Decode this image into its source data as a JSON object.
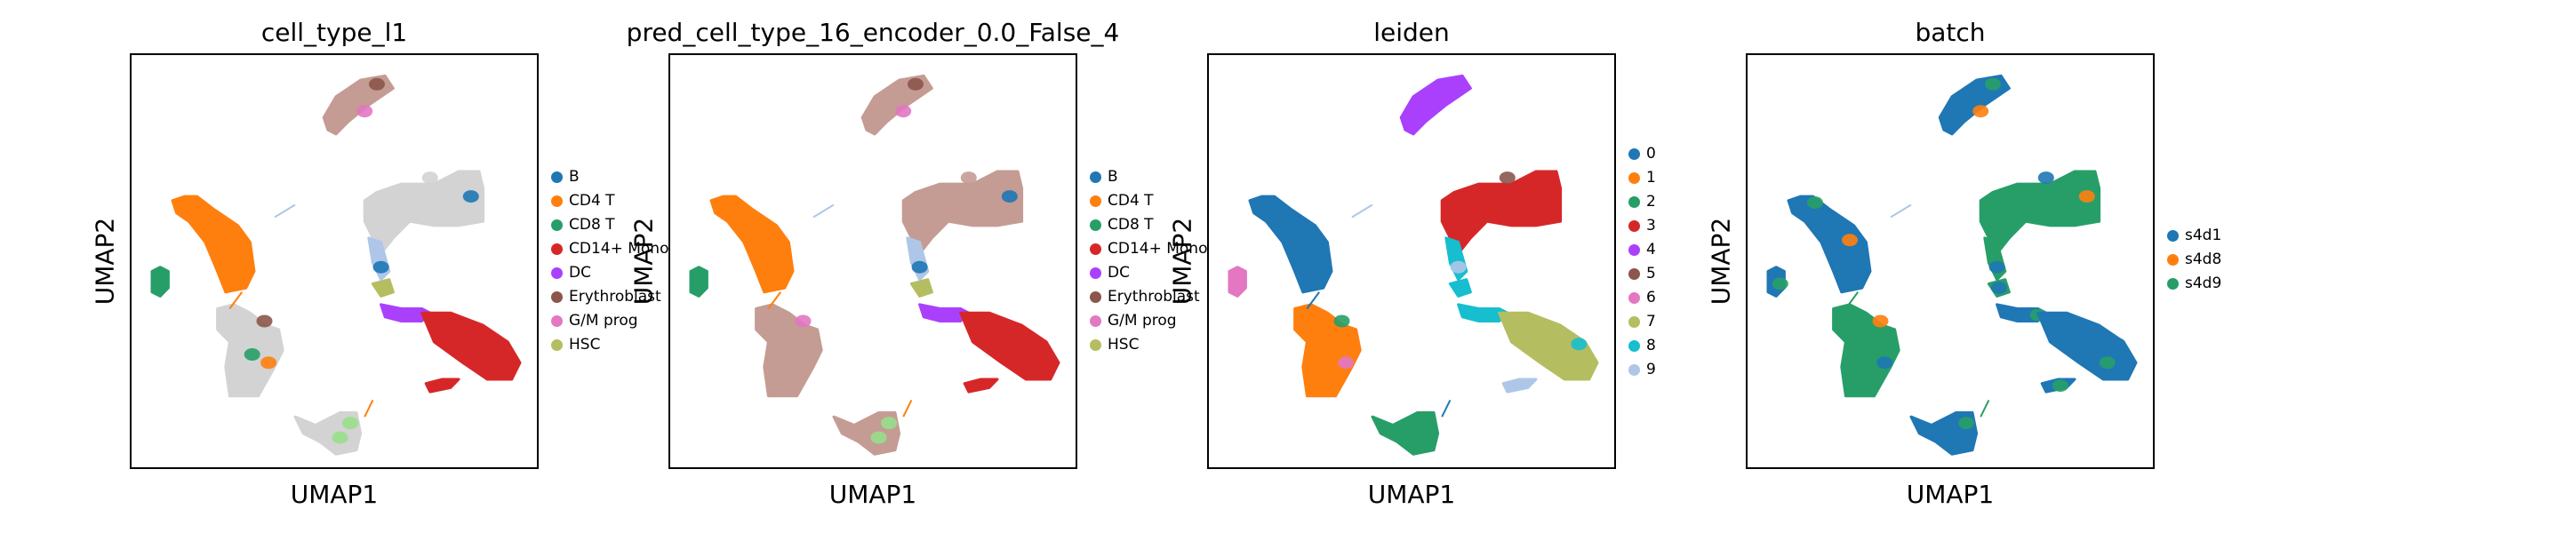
{
  "chart_data": [
    {
      "type": "scatter",
      "title": "cell_type_l1",
      "xlabel": "UMAP1",
      "ylabel": "UMAP2",
      "legend_position": "right",
      "grid": false,
      "legend": [
        {
          "label": "B",
          "color": "#1f77b4"
        },
        {
          "label": "CD4 T",
          "color": "#ff7f0e"
        },
        {
          "label": "CD8 T",
          "color": "#279e68"
        },
        {
          "label": "CD14+ Mono",
          "color": "#d62728"
        },
        {
          "label": "DC",
          "color": "#aa40fc"
        },
        {
          "label": "Erythroblast",
          "color": "#8c564b"
        },
        {
          "label": "G/M prog",
          "color": "#e377c2"
        },
        {
          "label": "HSC",
          "color": "#b5bd61"
        }
      ]
    },
    {
      "type": "scatter",
      "title": "pred_cell_type_16_encoder_0.0_False_4",
      "xlabel": "UMAP1",
      "ylabel": "UMAP2",
      "legend_position": "right",
      "grid": false,
      "legend": [
        {
          "label": "B",
          "color": "#1f77b4"
        },
        {
          "label": "CD4 T",
          "color": "#ff7f0e"
        },
        {
          "label": "CD8 T",
          "color": "#279e68"
        },
        {
          "label": "CD14+ Mono",
          "color": "#d62728"
        },
        {
          "label": "DC",
          "color": "#aa40fc"
        },
        {
          "label": "Erythroblast",
          "color": "#8c564b"
        },
        {
          "label": "G/M prog",
          "color": "#e377c2"
        },
        {
          "label": "HSC",
          "color": "#b5bd61"
        }
      ]
    },
    {
      "type": "scatter",
      "title": "leiden",
      "xlabel": "UMAP1",
      "ylabel": "UMAP2",
      "legend_position": "right",
      "grid": false,
      "legend": [
        {
          "label": "0",
          "color": "#1f77b4"
        },
        {
          "label": "1",
          "color": "#ff7f0e"
        },
        {
          "label": "2",
          "color": "#279e68"
        },
        {
          "label": "3",
          "color": "#d62728"
        },
        {
          "label": "4",
          "color": "#aa40fc"
        },
        {
          "label": "5",
          "color": "#8c564b"
        },
        {
          "label": "6",
          "color": "#e377c2"
        },
        {
          "label": "7",
          "color": "#b5bd61"
        },
        {
          "label": "8",
          "color": "#17becf"
        },
        {
          "label": "9",
          "color": "#aec7e8"
        }
      ]
    },
    {
      "type": "scatter",
      "title": "batch",
      "xlabel": "UMAP1",
      "ylabel": "UMAP2",
      "legend_position": "right",
      "grid": false,
      "legend": [
        {
          "label": "s4d1",
          "color": "#1f77b4"
        },
        {
          "label": "s4d8",
          "color": "#ff7f0e"
        },
        {
          "label": "s4d9",
          "color": "#279e68"
        }
      ]
    }
  ]
}
